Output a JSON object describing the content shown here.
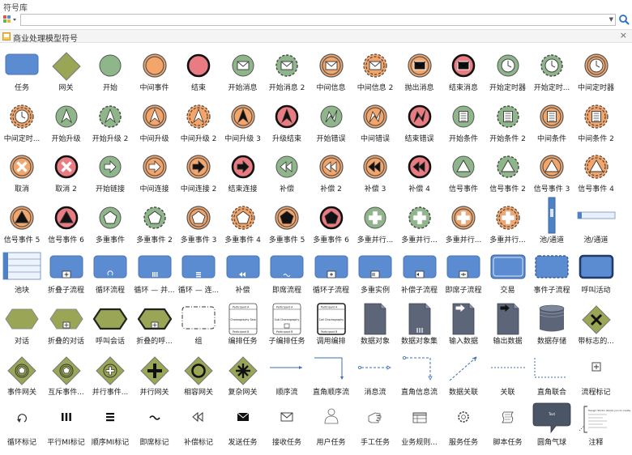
{
  "window": {
    "title": "符号库"
  },
  "search": {
    "value": "",
    "placeholder": ""
  },
  "library": {
    "title": "商业处理模型符号"
  },
  "labels": [
    "任务",
    "网关",
    "开始",
    "中间事件",
    "结束",
    "开始消息",
    "开始消息 2",
    "中间信息",
    "中间信息 2",
    "抛出消息",
    "结束消息",
    "开始定时器",
    "开始定时...",
    "中间定时器",
    "中间定时...",
    "开始升级",
    "开始升级 2",
    "中间升级",
    "中间升级 2",
    "中间升级 3",
    "升级结束",
    "开始错误",
    "中间错误",
    "结束错误",
    "开始条件",
    "开始条件 2",
    "中间条件",
    "中间条件 2",
    "取消",
    "取消 2",
    "开始链接",
    "中间连接",
    "中间连接 2",
    "结束连接",
    "补偿",
    "补偿 2",
    "补偿 3",
    "补偿 4",
    "信号事件",
    "信号事件 2",
    "信号事件 3",
    "信号事件 4",
    "信号事件 5",
    "信号事件 6",
    "多重事件",
    "多重事件 2",
    "多重事件 3",
    "多重事件 4",
    "多重事件 5",
    "多重事件 6",
    "多重并行...",
    "多重并行...",
    "多重并行...",
    "多重并行...",
    "池/通道",
    "池/通道",
    "池块",
    "折叠子流程",
    "循环流程",
    "循环 — 并...",
    "循环 — 连...",
    "补偿",
    "即席流程",
    "循环子流程",
    "多重实例",
    "补偿子流程",
    "即席子流程",
    "交易",
    "事件子流程",
    "呼叫活动",
    "对话",
    "折叠的对话",
    "呼叫会话",
    "折叠的呼...",
    "组",
    "编排任务",
    "子编排任务",
    "调用编排",
    "数据对象",
    "数据对象集",
    "输入数据",
    "输出数据",
    "数据存储",
    "带标志的...",
    "事件网关",
    "互斥事件...",
    "并行事件...",
    "并行网关",
    "相容网关",
    "复杂网关",
    "顺序流",
    "直角顺序流",
    "消息流",
    "直角信息流",
    "数据关联",
    "关联",
    "直角联合",
    "流程标记",
    "循环标记",
    "平行MI标记",
    "顺序MI标记",
    "即席标记",
    "补偿标记",
    "发送任务",
    "接收任务",
    "用户任务",
    "手工任务",
    "业务规则...",
    "服务任务",
    "脚本任务",
    "圆角气球",
    "注释"
  ],
  "icons": [
    "task-shape",
    "gateway-diamond",
    "start-event-circle",
    "intermediate-event-circle",
    "end-event-circle",
    "start-message-circle",
    "start-message-2-circle",
    "intermediate-message-circle",
    "intermediate-message-2-circle",
    "throw-message-circle",
    "end-message-circle",
    "start-timer-circle",
    "start-timer-2-circle",
    "intermediate-timer-circle",
    "intermediate-timer-2-circle",
    "start-escalation-circle",
    "start-escalation-2-circle",
    "intermediate-escalation-circle",
    "intermediate-escalation-2-circle",
    "intermediate-escalation-3-circle",
    "end-escalation-circle",
    "start-error-circle",
    "intermediate-error-circle",
    "end-error-circle",
    "start-conditional-circle",
    "start-conditional-2-circle",
    "intermediate-conditional-circle",
    "intermediate-conditional-2-circle",
    "cancel-circle",
    "cancel-2-circle",
    "start-link-circle",
    "intermediate-link-circle",
    "intermediate-link-2-circle",
    "end-link-circle",
    "compensation-circle",
    "compensation-2-circle",
    "compensation-3-circle",
    "compensation-4-circle",
    "signal-event-circle",
    "signal-event-2-circle",
    "signal-event-3-circle",
    "signal-event-4-circle",
    "signal-event-5-circle",
    "signal-event-6-circle",
    "multiple-event-circle",
    "multiple-event-2-circle",
    "multiple-event-3-circle",
    "multiple-event-4-circle",
    "multiple-event-5-circle",
    "multiple-event-6-circle",
    "multiple-parallel-circle",
    "multiple-parallel-2-circle",
    "multiple-parallel-3-circle",
    "multiple-parallel-4-circle",
    "pool-vertical-shape",
    "pool-horizontal-shape",
    "pool-block-shape",
    "collapsed-subprocess-shape",
    "loop-process-shape",
    "loop-parallel-shape",
    "loop-sequential-shape",
    "compensation-task-shape",
    "adhoc-process-shape",
    "loop-subprocess-shape",
    "multi-instance-shape",
    "compensation-subprocess-shape",
    "adhoc-subprocess-shape",
    "transaction-shape",
    "event-subprocess-shape",
    "call-activity-shape",
    "conversation-hexagon",
    "collapsed-conversation-hexagon",
    "call-conversation-hexagon",
    "collapsed-call-conversation-hexagon",
    "group-shape",
    "choreography-task-shape",
    "sub-choreography-shape",
    "call-choreography-shape",
    "data-object-icon",
    "data-object-collection-icon",
    "data-input-icon",
    "data-output-icon",
    "data-store-icon",
    "flagged-gateway-diamond",
    "event-gateway-diamond",
    "exclusive-event-gateway-diamond",
    "parallel-event-gateway-diamond",
    "parallel-gateway-diamond",
    "inclusive-gateway-diamond",
    "complex-gateway-diamond",
    "sequence-flow-line",
    "orthogonal-sequence-flow-line",
    "message-flow-line",
    "orthogonal-message-flow-line",
    "data-association-line",
    "association-line",
    "orthogonal-association-line",
    "process-marker-icon",
    "loop-marker-icon",
    "parallel-mi-marker-icon",
    "sequential-mi-marker-icon",
    "adhoc-marker-icon",
    "compensation-marker-icon",
    "send-task-icon",
    "receive-task-icon",
    "user-task-icon",
    "manual-task-icon",
    "business-rule-task-icon",
    "service-task-icon",
    "script-task-icon",
    "rounded-balloon-icon",
    "annotation-icon"
  ],
  "shape_text": {
    "choreography_top": "Participant A",
    "choreography_middle": "Choreography Task",
    "choreography_bottom": "Participant B",
    "sub_choreography_middle": "Sub Choreography",
    "call_choreography_middle": "Call Choreography",
    "balloon_text": "Text",
    "annotation_text": "Design Studio allows you to create"
  },
  "colors": {
    "task_blue": "#5b8bd0",
    "gateway_olive": "#9aa655",
    "start_green": "#8fb58a",
    "intermediate_orange": "#f4a56a",
    "end_red": "#e97c82",
    "data_object_slate": "#5c6678",
    "annotation_icon_slate": "#4a5565"
  }
}
